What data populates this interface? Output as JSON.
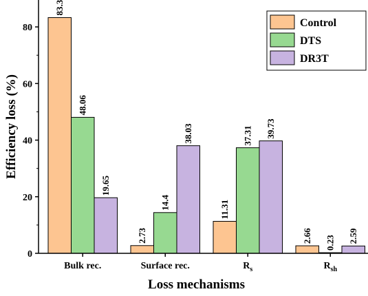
{
  "chart_data": {
    "type": "bar",
    "title": "",
    "xlabel": "Loss mechanisms",
    "ylabel": "Efficiency loss (%)",
    "ylim": [
      0,
      90
    ],
    "yticks": [
      0,
      20,
      40,
      60,
      80
    ],
    "categories": [
      {
        "main": "Bulk rec.",
        "sub": ""
      },
      {
        "main": "Surface rec.",
        "sub": ""
      },
      {
        "main": "R",
        "sub": "s"
      },
      {
        "main": "R",
        "sub": "sh"
      }
    ],
    "series": [
      {
        "name": "Control",
        "color": "#FDC591",
        "values": [
          83.3,
          2.73,
          11.31,
          2.66
        ],
        "labels": [
          "83.3",
          "2.73",
          "11.31",
          "2.66"
        ]
      },
      {
        "name": "DTS",
        "color": "#97D991",
        "values": [
          48.06,
          14.4,
          37.31,
          0.23
        ],
        "labels": [
          "48.06",
          "14.4",
          "37.31",
          "0.23"
        ]
      },
      {
        "name": "DR3T",
        "color": "#C7B3E0",
        "values": [
          19.65,
          38.03,
          39.73,
          2.59
        ],
        "labels": [
          "19.65",
          "38.03",
          "39.73",
          "2.59"
        ]
      }
    ],
    "legend": {
      "position": "top-right"
    },
    "grid": false
  }
}
